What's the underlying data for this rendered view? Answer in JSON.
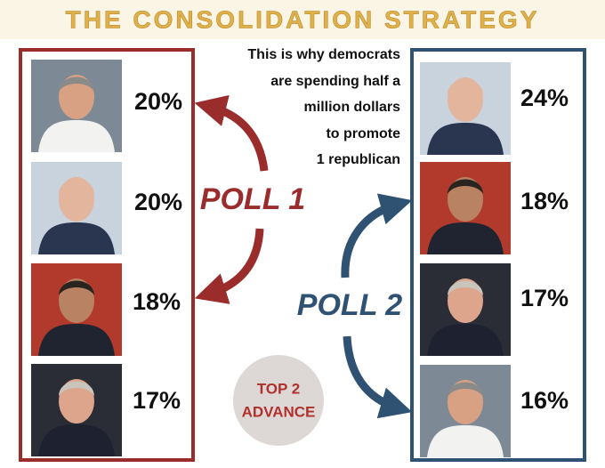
{
  "header": {
    "title": "THE CONSOLIDATION STRATEGY"
  },
  "note": [
    "This is why democrats",
    "are spending half a",
    "million dollars",
    "to promote",
    "1 republican"
  ],
  "poll1": {
    "label": "POLL 1",
    "results": [
      "20%",
      "20%",
      "18%",
      "17%"
    ]
  },
  "poll2": {
    "label": "POLL 2",
    "results": [
      "24%",
      "18%",
      "17%",
      "16%"
    ]
  },
  "badge": [
    "TOP 2",
    "ADVANCE"
  ]
}
